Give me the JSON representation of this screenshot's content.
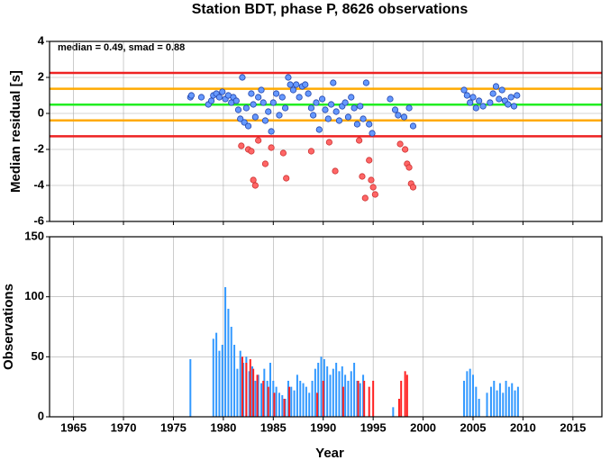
{
  "chart_data": [
    {
      "type": "scatter",
      "title": "Station BDT, phase P, 8626 observations",
      "ylabel": "Median residual [s]",
      "annotation": "median = 0.49, smad = 0.88",
      "xlim": [
        1962.6,
        2017.9
      ],
      "xticks": [
        1965,
        1970,
        1975,
        1980,
        1985,
        1990,
        1995,
        2000,
        2005,
        2010,
        2015
      ],
      "ylim": [
        -6,
        4
      ],
      "yticks": [
        -6,
        -4,
        -2,
        0,
        2,
        4
      ],
      "grid": true,
      "hlines": [
        {
          "value": 2.25,
          "color": "#ee2222"
        },
        {
          "value": 1.37,
          "color": "#ffaa00"
        },
        {
          "value": 0.49,
          "color": "#22ee22"
        },
        {
          "value": -0.39,
          "color": "#ffaa00"
        },
        {
          "value": -1.27,
          "color": "#ee2222"
        }
      ],
      "series": [
        {
          "color": "#6699ff",
          "edge": "#2244aa",
          "x": [
            1976.7,
            1976.8,
            1977.8,
            1978.5,
            1978.8,
            1979.0,
            1979.3,
            1979.6,
            1979.9,
            1980.2,
            1980.5,
            1980.8,
            1981.0,
            1981.3,
            1981.5,
            1981.7,
            1981.9,
            1982.1,
            1982.3,
            1982.5,
            1982.8,
            1983.0,
            1983.2,
            1983.5,
            1983.8,
            1984.0,
            1984.2,
            1984.5,
            1984.8,
            1985.0,
            1985.3,
            1985.6,
            1985.9,
            1986.2,
            1986.5,
            1986.7,
            1987.0,
            1987.3,
            1987.6,
            1987.9,
            1988.2,
            1988.5,
            1988.8,
            1989.0,
            1989.3,
            1989.6,
            1989.9,
            1990.2,
            1990.5,
            1990.8,
            1991.0,
            1991.3,
            1991.6,
            1991.9,
            1992.2,
            1992.5,
            1992.8,
            1993.1,
            1993.4,
            1993.7,
            1994.0,
            1994.3,
            1994.6,
            1994.9,
            1996.7,
            1997.2,
            1997.5,
            1998.1,
            1998.6,
            1999.0,
            2004.1,
            2004.4,
            2004.7,
            2005.0,
            2005.3,
            2005.6,
            2006.0,
            2006.7,
            2007.0,
            2007.3,
            2007.6,
            2007.9,
            2008.2,
            2008.5,
            2008.8,
            2009.1,
            2009.4
          ],
          "values": [
            0.9,
            1.0,
            0.9,
            0.5,
            0.7,
            1.0,
            1.1,
            0.9,
            1.2,
            0.8,
            1.0,
            0.6,
            0.9,
            0.7,
            0.2,
            -0.3,
            2.0,
            -0.5,
            0.3,
            -0.7,
            1.1,
            0.5,
            -0.2,
            0.9,
            1.3,
            0.6,
            -0.4,
            0.1,
            -1.0,
            0.6,
            1.1,
            -0.1,
            0.9,
            0.3,
            2.0,
            1.6,
            1.3,
            1.6,
            0.9,
            1.5,
            1.6,
            1.1,
            0.3,
            -0.1,
            0.6,
            -0.9,
            0.8,
            0.2,
            -0.3,
            0.5,
            1.7,
            0.1,
            -0.4,
            0.4,
            0.6,
            -0.2,
            0.9,
            0.3,
            -0.6,
            0.4,
            -0.3,
            1.7,
            -0.6,
            -1.1,
            0.8,
            0.2,
            -0.1,
            -0.2,
            0.3,
            -0.7,
            1.3,
            1.0,
            0.6,
            0.9,
            0.3,
            0.7,
            0.4,
            0.6,
            1.1,
            1.5,
            0.8,
            1.3,
            0.7,
            0.5,
            0.9,
            0.4,
            1.0
          ]
        },
        {
          "color": "#ff6666",
          "edge": "#cc3333",
          "x": [
            1981.8,
            1982.5,
            1982.8,
            1983.0,
            1983.2,
            1983.5,
            1984.2,
            1984.8,
            1986.0,
            1986.3,
            1988.8,
            1990.6,
            1991.2,
            1993.6,
            1993.9,
            1994.2,
            1994.6,
            1994.8,
            1995.0,
            1995.2,
            1997.7,
            1998.2,
            1998.4,
            1998.6,
            1998.8,
            1999.0
          ],
          "values": [
            -1.8,
            -2.0,
            -2.1,
            -3.7,
            -4.0,
            -1.5,
            -2.8,
            -1.9,
            -2.2,
            -3.6,
            -2.1,
            -1.6,
            -3.2,
            -1.5,
            -3.5,
            -4.7,
            -2.6,
            -3.7,
            -4.1,
            -4.5,
            -1.7,
            -2.0,
            -2.8,
            -3.0,
            -3.9,
            -4.1
          ]
        }
      ]
    },
    {
      "type": "bar",
      "ylabel": "Observations",
      "xlabel": "Year",
      "xlim": [
        1962.6,
        2017.9
      ],
      "xticks": [
        1965,
        1970,
        1975,
        1980,
        1985,
        1990,
        1995,
        2000,
        2005,
        2010,
        2015
      ],
      "ylim": [
        0,
        150
      ],
      "yticks": [
        0,
        50,
        100,
        150
      ],
      "grid": true,
      "series": [
        {
          "color": "#3399ff",
          "x": [
            1976.7,
            1979.0,
            1979.3,
            1979.6,
            1979.9,
            1980.2,
            1980.5,
            1980.8,
            1981.1,
            1981.4,
            1981.7,
            1982.0,
            1982.3,
            1982.6,
            1982.9,
            1983.2,
            1983.5,
            1983.8,
            1984.1,
            1984.4,
            1984.7,
            1985.0,
            1985.3,
            1985.6,
            1985.9,
            1986.2,
            1986.5,
            1986.8,
            1987.1,
            1987.4,
            1987.7,
            1988.0,
            1988.3,
            1988.6,
            1988.9,
            1989.2,
            1989.5,
            1989.8,
            1990.1,
            1990.4,
            1990.7,
            1991.0,
            1991.3,
            1991.6,
            1991.9,
            1992.2,
            1992.5,
            1992.8,
            1993.1,
            1993.4,
            1993.7,
            1994.0,
            1997.0,
            2004.1,
            2004.4,
            2004.7,
            2005.0,
            2005.3,
            2005.6,
            2006.4,
            2006.8,
            2007.1,
            2007.4,
            2007.7,
            2008.0,
            2008.3,
            2008.6,
            2008.9,
            2009.2,
            2009.5
          ],
          "values": [
            48,
            65,
            70,
            55,
            60,
            108,
            90,
            75,
            60,
            40,
            55,
            45,
            50,
            38,
            42,
            30,
            35,
            28,
            40,
            30,
            45,
            30,
            25,
            20,
            18,
            15,
            30,
            25,
            22,
            35,
            30,
            28,
            25,
            20,
            30,
            40,
            45,
            50,
            48,
            42,
            35,
            40,
            45,
            38,
            42,
            35,
            30,
            38,
            45,
            30,
            28,
            35,
            8,
            30,
            38,
            40,
            35,
            25,
            15,
            20,
            25,
            30,
            22,
            28,
            20,
            30,
            25,
            28,
            22,
            25
          ]
        },
        {
          "color": "#ff2222",
          "x": [
            1981.9,
            1982.3,
            1982.7,
            1983.0,
            1983.4,
            1984.0,
            1984.5,
            1985.1,
            1986.1,
            1986.6,
            1989.4,
            1990.0,
            1992.0,
            1993.5,
            1994.1,
            1994.6,
            1995.0,
            1997.6,
            1997.8,
            1998.2,
            1998.4
          ],
          "values": [
            50,
            45,
            48,
            40,
            35,
            30,
            25,
            20,
            15,
            25,
            20,
            30,
            25,
            30,
            30,
            25,
            30,
            15,
            30,
            38,
            35
          ]
        }
      ]
    }
  ]
}
